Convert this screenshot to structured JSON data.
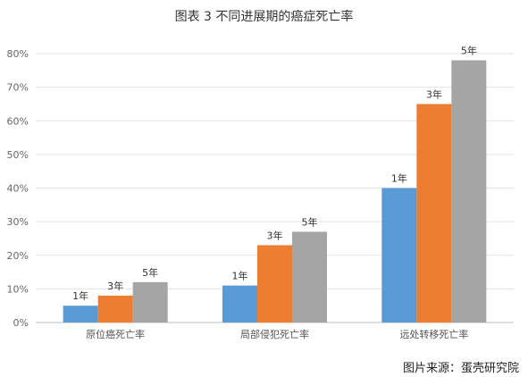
{
  "chart_data": {
    "type": "bar",
    "title": "图表 3 不同进展期的癌症死亡率",
    "categories": [
      "原位癌死亡率",
      "局部侵犯死亡率",
      "远处转移死亡率"
    ],
    "series": [
      {
        "values": [
          0.05,
          0.11,
          0.4
        ],
        "labels": [
          "1年",
          "1年",
          "1年"
        ]
      },
      {
        "values": [
          0.08,
          0.23,
          0.65
        ],
        "labels": [
          "3年",
          "3年",
          "3年"
        ]
      },
      {
        "values": [
          0.12,
          0.27,
          0.78
        ],
        "labels": [
          "5年",
          "5年",
          "5年"
        ]
      }
    ],
    "colors": [
      "#5b9bd5",
      "#ed7d31",
      "#a5a5a5"
    ],
    "yticks": [
      "0%",
      "10%",
      "20%",
      "30%",
      "40%",
      "50%",
      "60%",
      "70%",
      "80%"
    ],
    "ylim": [
      0,
      0.8
    ],
    "grid": true,
    "legend": "none"
  },
  "source": "图片来源：蛋壳研究院"
}
